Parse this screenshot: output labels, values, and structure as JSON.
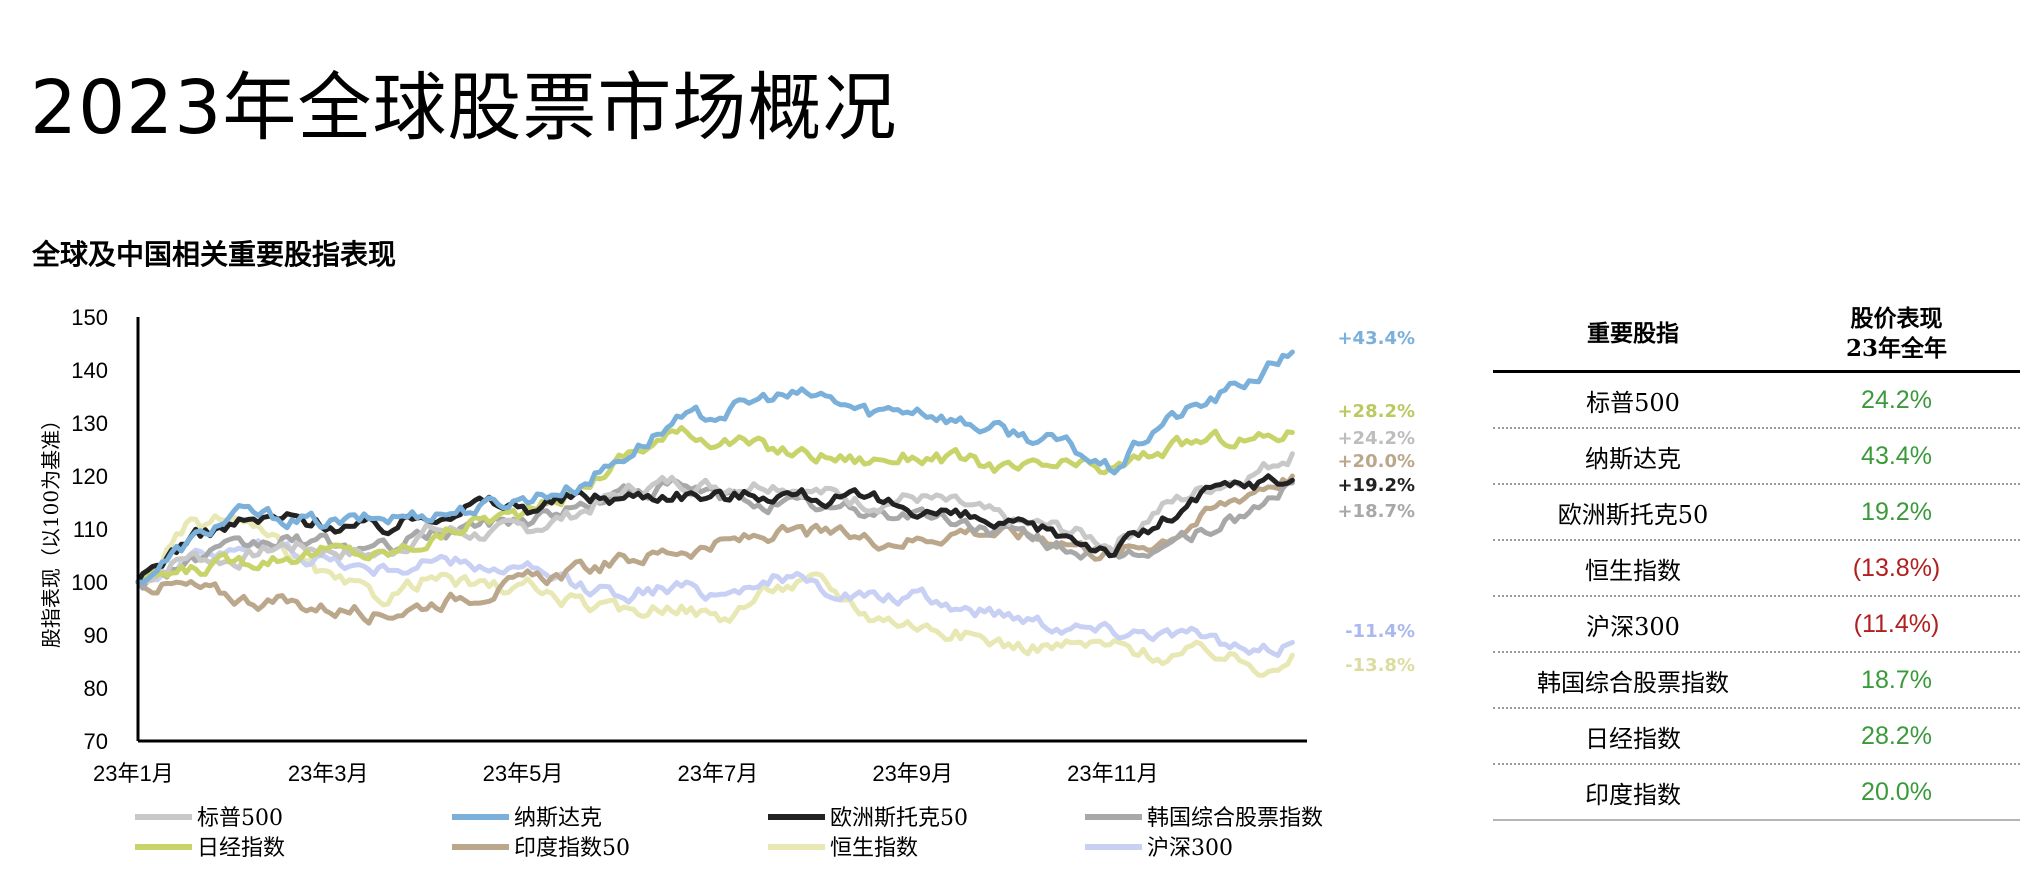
{
  "page": {
    "title": "2023年全球股票市场概况",
    "subtitle": "全球及中国相关重要股指表现"
  },
  "colors": {
    "positive": "#3a9a3a",
    "negative": "#b02020"
  },
  "table": {
    "header_col1": "重要股指",
    "header_col2_line1": "股价表现",
    "header_col2_line2": "23年全年",
    "rows": [
      {
        "name": "标普500",
        "value": "24.2%",
        "sign": "positive"
      },
      {
        "name": "纳斯达克",
        "value": "43.4%",
        "sign": "positive"
      },
      {
        "name": "欧洲斯托克50",
        "value": "19.2%",
        "sign": "positive"
      },
      {
        "name": "恒生指数",
        "value": "(13.8%)",
        "sign": "negative"
      },
      {
        "name": "沪深300",
        "value": "(11.4%)",
        "sign": "negative"
      },
      {
        "name": "韩国综合股票指数",
        "value": "18.7%",
        "sign": "positive"
      },
      {
        "name": "日经指数",
        "value": "28.2%",
        "sign": "positive"
      },
      {
        "name": "印度指数",
        "value": "20.0%",
        "sign": "positive"
      }
    ]
  },
  "chart_data": {
    "type": "line",
    "title": "",
    "xlabel": "",
    "ylabel": "股指表现（以100为基准）",
    "ylim": [
      70,
      150
    ],
    "yticks": [
      70,
      80,
      90,
      100,
      110,
      120,
      130,
      140,
      150
    ],
    "xlim": [
      0,
      12
    ],
    "xticks": [
      {
        "pos": 0,
        "label": "23年1月"
      },
      {
        "pos": 2,
        "label": "23年3月"
      },
      {
        "pos": 4,
        "label": "23年5月"
      },
      {
        "pos": 6,
        "label": "23年7月"
      },
      {
        "pos": 8,
        "label": "23年9月"
      },
      {
        "pos": 10,
        "label": "23年11月"
      }
    ],
    "grid": false,
    "legend_position": "bottom",
    "series": [
      {
        "name": "标普500",
        "color": "#c8c8c8",
        "end_label": "+24.2%",
        "points": [
          [
            0,
            100
          ],
          [
            0.5,
            105
          ],
          [
            1,
            104
          ],
          [
            1.5,
            107
          ],
          [
            2,
            106
          ],
          [
            2.5,
            105
          ],
          [
            3,
            110
          ],
          [
            3.5,
            109
          ],
          [
            4,
            110
          ],
          [
            4.5,
            113
          ],
          [
            5,
            117
          ],
          [
            5.5,
            119
          ],
          [
            6,
            118
          ],
          [
            6.5,
            119
          ],
          [
            7,
            117
          ],
          [
            7.5,
            115
          ],
          [
            8,
            116
          ],
          [
            8.5,
            114
          ],
          [
            9,
            111
          ],
          [
            9.5,
            110
          ],
          [
            10,
            107
          ],
          [
            10.5,
            114
          ],
          [
            11,
            118
          ],
          [
            11.5,
            121
          ],
          [
            11.85,
            124.2
          ]
        ]
      },
      {
        "name": "纳斯达克",
        "color": "#7ab0da",
        "end_label": "+43.4%",
        "points": [
          [
            0,
            100
          ],
          [
            0.5,
            107
          ],
          [
            1,
            113
          ],
          [
            1.5,
            112
          ],
          [
            2,
            111
          ],
          [
            2.5,
            112
          ],
          [
            3,
            113
          ],
          [
            3.5,
            114
          ],
          [
            4,
            116
          ],
          [
            4.5,
            118
          ],
          [
            5,
            124
          ],
          [
            5.5,
            130
          ],
          [
            6,
            132
          ],
          [
            6.5,
            135
          ],
          [
            7,
            135
          ],
          [
            7.5,
            132
          ],
          [
            8,
            133
          ],
          [
            8.5,
            130
          ],
          [
            9,
            128
          ],
          [
            9.5,
            126
          ],
          [
            10,
            121
          ],
          [
            10.5,
            130
          ],
          [
            11,
            134
          ],
          [
            11.5,
            139
          ],
          [
            11.85,
            143.4
          ]
        ]
      },
      {
        "name": "欧洲斯托克50",
        "color": "#222222",
        "end_label": "+19.2%",
        "points": [
          [
            0,
            100
          ],
          [
            0.5,
            108
          ],
          [
            1,
            111
          ],
          [
            1.5,
            112
          ],
          [
            2,
            111
          ],
          [
            2.5,
            110
          ],
          [
            3,
            113
          ],
          [
            3.5,
            115
          ],
          [
            4,
            114
          ],
          [
            4.5,
            116
          ],
          [
            5,
            116
          ],
          [
            5.5,
            117
          ],
          [
            6,
            116
          ],
          [
            6.5,
            117
          ],
          [
            7,
            116
          ],
          [
            7.5,
            115
          ],
          [
            8,
            114
          ],
          [
            8.5,
            112
          ],
          [
            9,
            110
          ],
          [
            9.5,
            109
          ],
          [
            10,
            106
          ],
          [
            10.5,
            111
          ],
          [
            11,
            117
          ],
          [
            11.5,
            119
          ],
          [
            11.85,
            119.2
          ]
        ]
      },
      {
        "name": "韩国综合股票指数",
        "color": "#a8a8a8",
        "end_label": "+18.7%",
        "points": [
          [
            0,
            100
          ],
          [
            0.5,
            104
          ],
          [
            1,
            106
          ],
          [
            1.5,
            108
          ],
          [
            2,
            107
          ],
          [
            2.5,
            106
          ],
          [
            3,
            109
          ],
          [
            3.5,
            111
          ],
          [
            4,
            112
          ],
          [
            4.5,
            114
          ],
          [
            5,
            117
          ],
          [
            5.5,
            118
          ],
          [
            6,
            116
          ],
          [
            6.5,
            115
          ],
          [
            7,
            114
          ],
          [
            7.5,
            113
          ],
          [
            8,
            113
          ],
          [
            8.5,
            111
          ],
          [
            9,
            109
          ],
          [
            9.5,
            107
          ],
          [
            10,
            104
          ],
          [
            10.5,
            107
          ],
          [
            11,
            110
          ],
          [
            11.5,
            114
          ],
          [
            11.85,
            118.7
          ]
        ]
      },
      {
        "name": "日经指数",
        "color": "#c8d46a",
        "end_label": "+28.2%",
        "points": [
          [
            0,
            100
          ],
          [
            0.5,
            102
          ],
          [
            1,
            104
          ],
          [
            1.5,
            105
          ],
          [
            2,
            106
          ],
          [
            2.5,
            105
          ],
          [
            3,
            108
          ],
          [
            3.5,
            112
          ],
          [
            4,
            113
          ],
          [
            4.5,
            117
          ],
          [
            5,
            124
          ],
          [
            5.5,
            128
          ],
          [
            6,
            127
          ],
          [
            6.5,
            125
          ],
          [
            7,
            124
          ],
          [
            7.5,
            123
          ],
          [
            8,
            124
          ],
          [
            8.5,
            123
          ],
          [
            9,
            121
          ],
          [
            9.5,
            122
          ],
          [
            10,
            121
          ],
          [
            10.5,
            125
          ],
          [
            11,
            127
          ],
          [
            11.5,
            127
          ],
          [
            11.85,
            128.2
          ]
        ]
      },
      {
        "name": "印度指数50",
        "color": "#bba88c",
        "end_label": "+20.0%",
        "points": [
          [
            0,
            100
          ],
          [
            0.5,
            99
          ],
          [
            1,
            97
          ],
          [
            1.5,
            96
          ],
          [
            2,
            95
          ],
          [
            2.5,
            94
          ],
          [
            3,
            96
          ],
          [
            3.5,
            98
          ],
          [
            4,
            100
          ],
          [
            4.5,
            102
          ],
          [
            5,
            104
          ],
          [
            5.5,
            106
          ],
          [
            6,
            107
          ],
          [
            6.5,
            109
          ],
          [
            7,
            109
          ],
          [
            7.5,
            108
          ],
          [
            8,
            108
          ],
          [
            8.5,
            110
          ],
          [
            9,
            109
          ],
          [
            9.5,
            108
          ],
          [
            10,
            105
          ],
          [
            10.5,
            108
          ],
          [
            11,
            113
          ],
          [
            11.5,
            118
          ],
          [
            11.85,
            120.0
          ]
        ]
      },
      {
        "name": "恒生指数",
        "color": "#e8e8b4",
        "end_label": "-13.8%",
        "points": [
          [
            0,
            100
          ],
          [
            0.5,
            110
          ],
          [
            1,
            112
          ],
          [
            1.5,
            106
          ],
          [
            2,
            100
          ],
          [
            2.5,
            97
          ],
          [
            3,
            101
          ],
          [
            3.5,
            99
          ],
          [
            4,
            99
          ],
          [
            4.5,
            96
          ],
          [
            5,
            94
          ],
          [
            5.5,
            96
          ],
          [
            6,
            93
          ],
          [
            6.5,
            99
          ],
          [
            7,
            100
          ],
          [
            7.5,
            94
          ],
          [
            8,
            92
          ],
          [
            8.5,
            90
          ],
          [
            9,
            88
          ],
          [
            9.5,
            88
          ],
          [
            10,
            88
          ],
          [
            10.5,
            86
          ],
          [
            11,
            87
          ],
          [
            11.5,
            84
          ],
          [
            11.85,
            86.2
          ]
        ]
      },
      {
        "name": "沪深300",
        "color": "#c8d0f4",
        "end_label": "-11.4%",
        "points": [
          [
            0,
            100
          ],
          [
            0.5,
            104
          ],
          [
            1,
            107
          ],
          [
            1.5,
            106
          ],
          [
            2,
            104
          ],
          [
            2.5,
            102
          ],
          [
            3,
            104
          ],
          [
            3.5,
            103
          ],
          [
            4,
            102
          ],
          [
            4.5,
            99
          ],
          [
            5,
            98
          ],
          [
            5.5,
            99
          ],
          [
            6,
            98
          ],
          [
            6.5,
            101
          ],
          [
            7,
            99
          ],
          [
            7.5,
            97
          ],
          [
            8,
            97
          ],
          [
            8.5,
            95
          ],
          [
            9,
            94
          ],
          [
            9.5,
            92
          ],
          [
            10,
            91
          ],
          [
            10.5,
            91
          ],
          [
            11,
            89
          ],
          [
            11.5,
            86
          ],
          [
            11.85,
            88.6
          ]
        ]
      }
    ],
    "end_labels_order": [
      "纳斯达克",
      "日经指数",
      "标普500",
      "印度指数50",
      "欧洲斯托克50",
      "韩国综合股票指数",
      "沪深300",
      "恒生指数"
    ],
    "legend": [
      [
        "标普500",
        "#c8c8c8"
      ],
      [
        "纳斯达克",
        "#7ab0da"
      ],
      [
        "欧洲斯托克50",
        "#222222"
      ],
      [
        "韩国综合股票指数",
        "#a8a8a8"
      ],
      [
        "日经指数",
        "#c8d46a"
      ],
      [
        "印度指数50",
        "#bba88c"
      ],
      [
        "恒生指数",
        "#e8e8b4"
      ],
      [
        "沪深300",
        "#c8d0f4"
      ]
    ]
  }
}
